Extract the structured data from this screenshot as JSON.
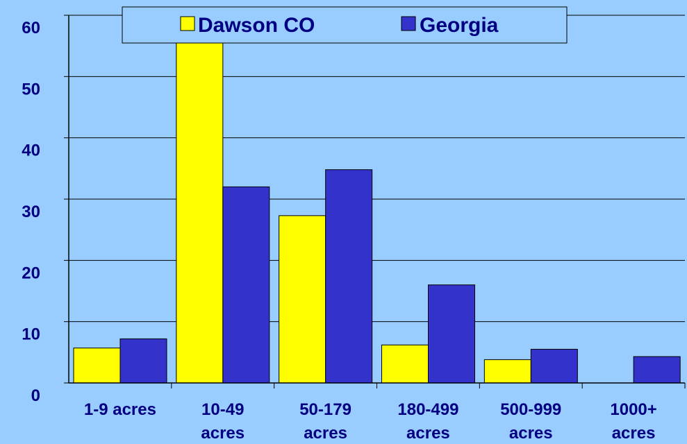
{
  "chart_data": {
    "type": "bar",
    "categories": [
      "1-9 acres",
      "10-49 acres",
      "50-179 acres",
      "180-499 acres",
      "500-999 acres",
      "1000+ acres"
    ],
    "category_lines": [
      [
        "1-9 acres"
      ],
      [
        "10-49",
        "acres"
      ],
      [
        "50-179",
        "acres"
      ],
      [
        "180-499",
        "acres"
      ],
      [
        "500-999",
        "acres"
      ],
      [
        "1000+",
        "acres"
      ]
    ],
    "series": [
      {
        "name": "Dawson CO",
        "values": [
          5.7,
          56,
          27.3,
          6.2,
          3.8,
          0
        ],
        "color": "#ffff00"
      },
      {
        "name": "Georgia",
        "values": [
          7.2,
          32,
          34.8,
          16,
          5.5,
          4.3
        ],
        "color": "#3333cc"
      }
    ],
    "yticks": [
      0,
      10,
      20,
      30,
      40,
      50,
      60
    ],
    "ylim": [
      0,
      60
    ],
    "grid": true,
    "legend_position": "top-center",
    "xlabel": "",
    "ylabel": "",
    "colors": {
      "background": "#99ccff",
      "text": "#000080",
      "grid": "#000000"
    }
  }
}
